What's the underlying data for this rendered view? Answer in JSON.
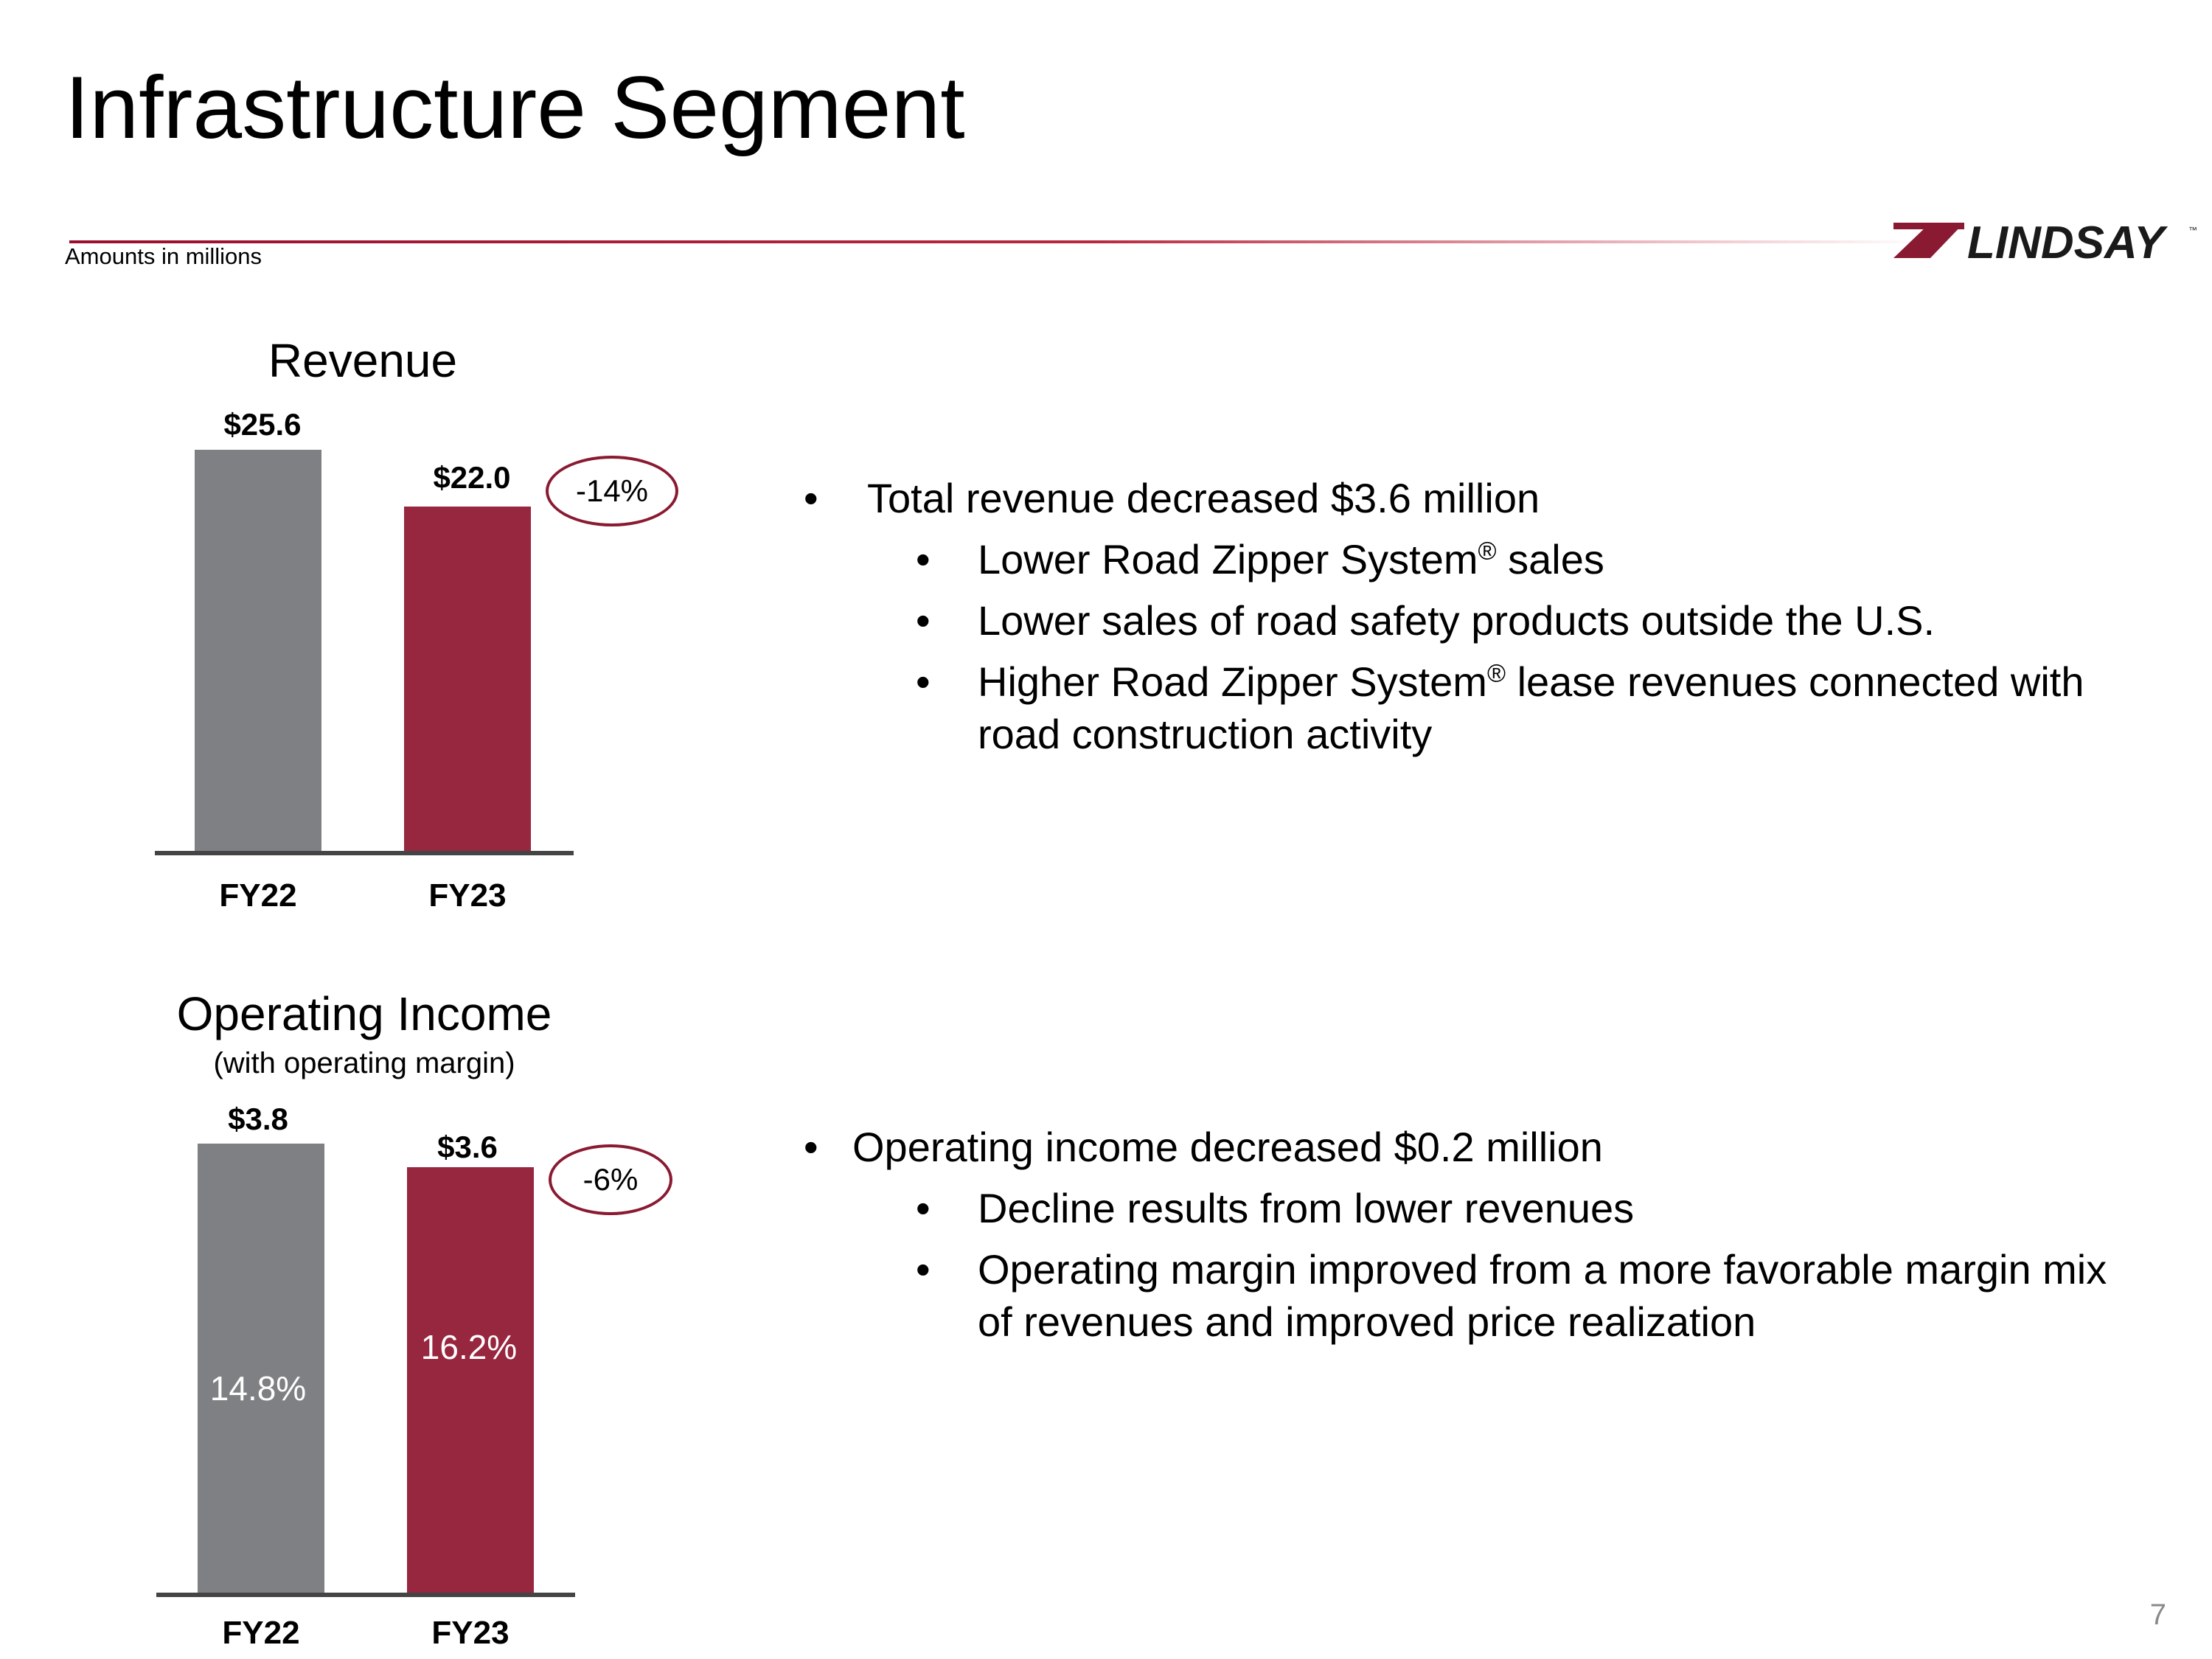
{
  "slide": {
    "title": "Infrastructure Segment",
    "amounts_note": "Amounts in millions",
    "logo_text": "LINDSAY",
    "logo_tm": "™",
    "page_number": "7"
  },
  "colors": {
    "fy22": "#7e8083",
    "fy23": "#97263f",
    "accent": "#8a1a32"
  },
  "chart_data": [
    {
      "type": "bar",
      "title": "Revenue",
      "categories": [
        "FY22",
        "FY23"
      ],
      "values": [
        25.6,
        22.0
      ],
      "value_labels": [
        "$25.6",
        "$22.0"
      ],
      "change": "-14%",
      "units": "$ millions",
      "ylim": [
        0,
        25.6
      ]
    },
    {
      "type": "bar",
      "title": "Operating Income",
      "subtitle": "(with operating margin)",
      "categories": [
        "FY22",
        "FY23"
      ],
      "values": [
        3.8,
        3.6
      ],
      "value_labels": [
        "$3.8",
        "$3.6"
      ],
      "margins": [
        "14.8%",
        "16.2%"
      ],
      "change": "-6%",
      "units": "$ millions",
      "ylim": [
        0,
        3.8
      ]
    }
  ],
  "revenue_bullets": {
    "main": "Total revenue decreased $3.6 million",
    "sub1_a": "Lower Road Zipper System",
    "sub1_b": " sales",
    "sub2": "Lower sales of road safety products outside the U.S.",
    "sub3_a": "Higher Road Zipper System",
    "sub3_b": " lease revenues connected with",
    "sub3_c": "road construction activity",
    "registered": "®"
  },
  "income_bullets": {
    "main": "Operating income decreased $0.2 million",
    "sub1": "Decline results from lower revenues",
    "sub2_a": "Operating margin improved from a more favorable margin mix",
    "sub2_b": "of revenues and improved price realization"
  },
  "bullet_char": "•"
}
